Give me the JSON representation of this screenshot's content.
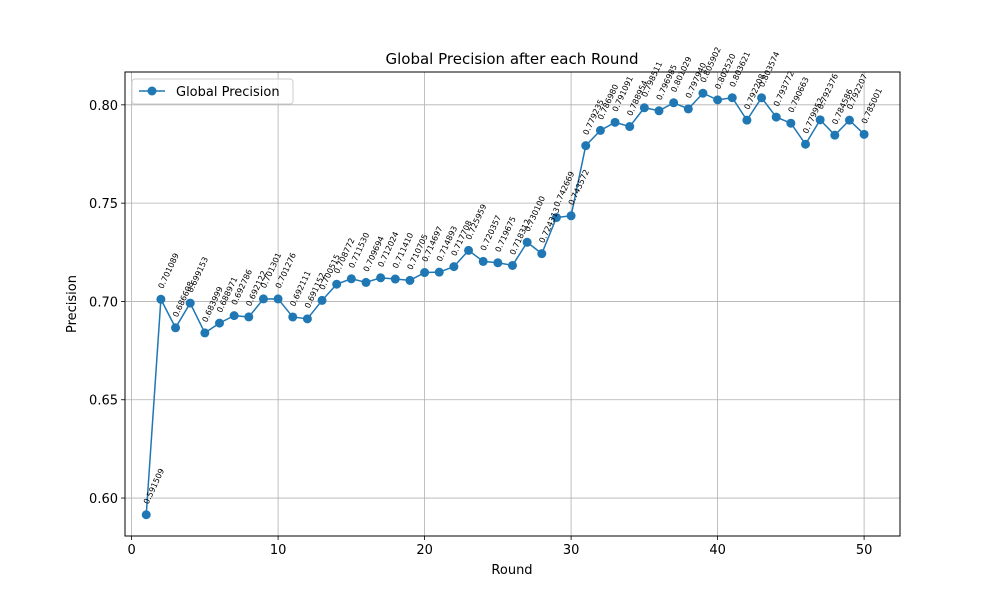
{
  "chart_data": {
    "type": "line",
    "title": "Global Precision after each Round",
    "xlabel": "Round",
    "ylabel": "Precision",
    "xlim": [
      -0.45,
      52.45
    ],
    "ylim": [
      0.5807,
      0.8167
    ],
    "xticks": [
      0,
      10,
      20,
      30,
      40,
      50
    ],
    "yticks": [
      0.6,
      0.65,
      0.7,
      0.75,
      0.8
    ],
    "ytick_labels": [
      "0.60",
      "0.65",
      "0.70",
      "0.75",
      "0.80"
    ],
    "grid": true,
    "legend_position": "top-left",
    "color": "#1f77b4",
    "series": [
      {
        "name": "Global Precision",
        "x": [
          1,
          2,
          3,
          4,
          5,
          6,
          7,
          8,
          9,
          10,
          11,
          12,
          13,
          14,
          15,
          16,
          17,
          18,
          19,
          20,
          21,
          22,
          23,
          24,
          25,
          26,
          27,
          28,
          29,
          30,
          31,
          32,
          33,
          34,
          35,
          36,
          37,
          38,
          39,
          40,
          41,
          42,
          43,
          44,
          45,
          46,
          47,
          48,
          49,
          50
        ],
        "y": [
          0.591509,
          0.701089,
          0.686608,
          0.699153,
          0.683999,
          0.688971,
          0.692786,
          0.692122,
          0.701301,
          0.701276,
          0.692111,
          0.691152,
          0.700515,
          0.708772,
          0.71153,
          0.709694,
          0.712024,
          0.71141,
          0.710705,
          0.714697,
          0.714893,
          0.717708,
          0.725959,
          0.720357,
          0.719675,
          0.718312,
          0.7301,
          0.724313,
          0.742669,
          0.743572,
          0.779235,
          0.78698,
          0.791091,
          0.788954,
          0.798511,
          0.796985,
          0.801029,
          0.79794,
          0.805902,
          0.80252,
          0.803621,
          0.792208,
          0.803574,
          0.793772,
          0.790663,
          0.779952,
          0.792376,
          0.784586,
          0.792207,
          0.785001
        ],
        "labels": [
          "0.591509",
          "0.701089",
          "0.686608",
          "0.699153",
          "0.683999",
          "0.688971",
          "0.692786",
          "0.692122",
          "0.701301",
          "0.701276",
          "0.692111",
          "0.691152",
          "0.700515",
          "0.708772",
          "0.711530",
          "0.709694",
          "0.712024",
          "0.711410",
          "0.710705",
          "0.714697",
          "0.714893",
          "0.717708",
          "0.725959",
          "0.720357",
          "0.719675",
          "0.718312",
          "0.730100",
          "0.724313",
          "0.742669",
          "0.743572",
          "0.779235",
          "0.786980",
          "0.791091",
          "0.788954",
          "0.798511",
          "0.796985",
          "0.801029",
          "0.797940",
          "0.805902",
          "0.802520",
          "0.803621",
          "0.792208",
          "0.803574",
          "0.793772",
          "0.790663",
          "0.779952",
          "0.792376",
          "0.784586",
          "0.792207",
          "0.785001"
        ]
      }
    ]
  }
}
